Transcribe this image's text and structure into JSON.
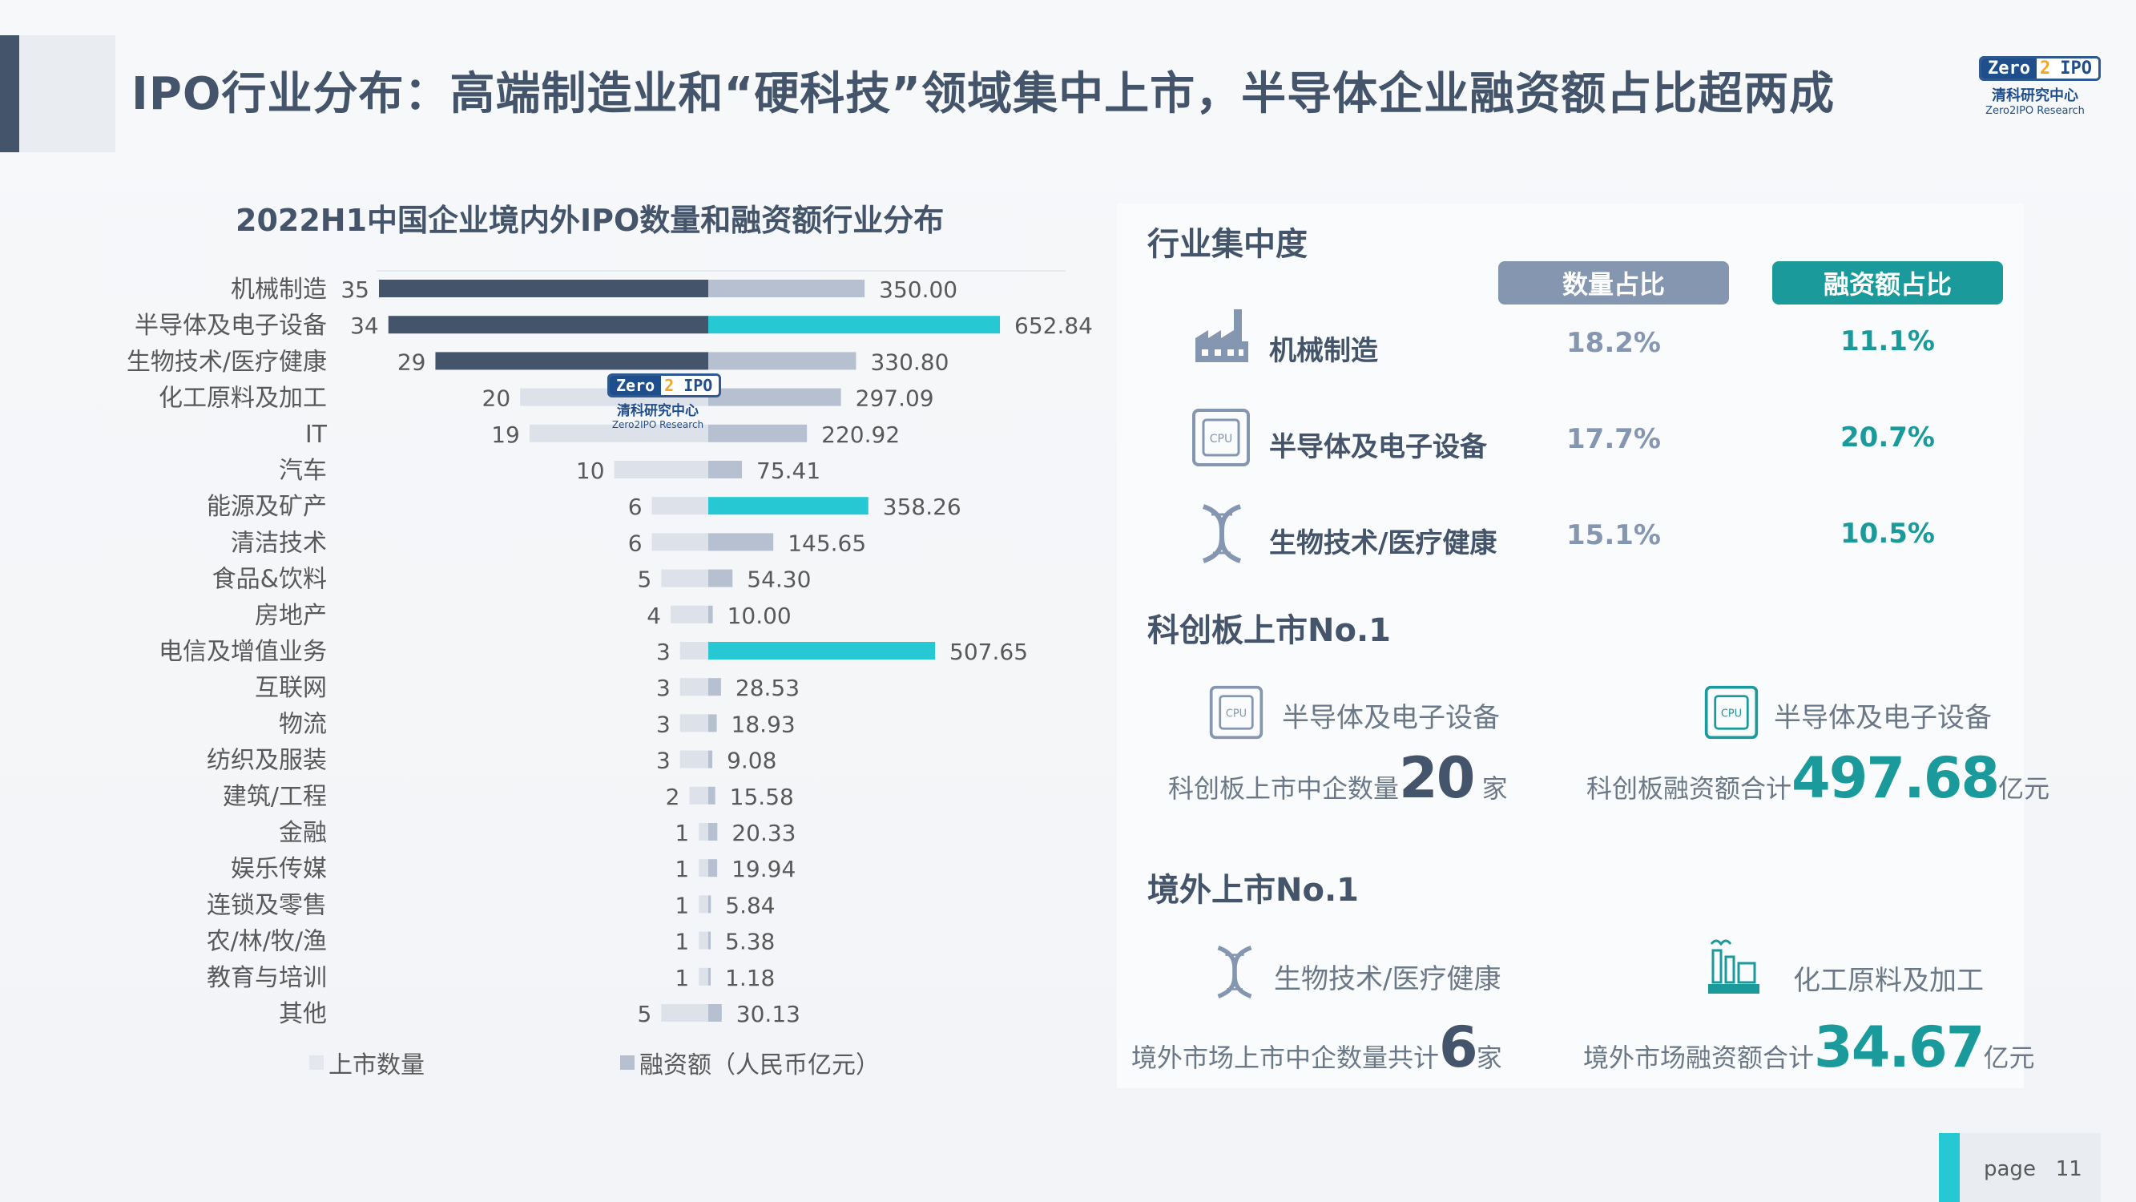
{
  "title": "IPO行业分布：高端制造业和“硬科技”领域集中上市，半导体企业融资额占比超两成",
  "logo": {
    "mark_left": "Zero",
    "mark_mid": "2",
    "mark_right": "IPO",
    "cn": "清科研究中心",
    "en": "Zero2IPO Research"
  },
  "chart_data": {
    "type": "bar",
    "title": "2022H1中国企业境内外IPO数量和融资额行业分布",
    "categories": [
      "机械制造",
      "半导体及电子设备",
      "生物技术/医疗健康",
      "化工原料及加工",
      "IT",
      "汽车",
      "能源及矿产",
      "清洁技术",
      "食品&饮料",
      "房地产",
      "电信及增值业务",
      "互联网",
      "物流",
      "纺织及服装",
      "建筑/工程",
      "金融",
      "娱乐传媒",
      "连锁及零售",
      "农/林/牧/渔",
      "教育与培训",
      "其他"
    ],
    "series": [
      {
        "name": "上市数量",
        "values": [
          35,
          34,
          29,
          20,
          19,
          10,
          6,
          6,
          5,
          4,
          3,
          3,
          3,
          3,
          2,
          1,
          1,
          1,
          1,
          1,
          5
        ]
      },
      {
        "name": "融资额（人民币亿元）",
        "values": [
          350.0,
          652.84,
          330.8,
          297.09,
          220.92,
          75.41,
          358.26,
          145.65,
          54.3,
          10.0,
          507.65,
          28.53,
          18.93,
          9.08,
          15.58,
          20.33,
          19.94,
          5.84,
          5.38,
          1.18,
          30.13
        ]
      }
    ],
    "value_labels_count": [
      "35",
      "34",
      "29",
      "20",
      "19",
      "10",
      "6",
      "6",
      "5",
      "4",
      "3",
      "3",
      "3",
      "3",
      "2",
      "1",
      "1",
      "1",
      "1",
      "1",
      "5"
    ],
    "value_labels_amount": [
      "350.00",
      "652.84",
      "330.80",
      "297.09",
      "220.92",
      "75.41",
      "358.26",
      "145.65",
      "54.30",
      "10.00",
      "507.65",
      "28.53",
      "18.93",
      "9.08",
      "15.58",
      "20.33",
      "19.94",
      "5.84",
      "5.38",
      "1.18",
      "30.13"
    ],
    "highlight_count": [
      0,
      1,
      2
    ],
    "highlight_amount": [
      1,
      6,
      10
    ],
    "legend_placement": "bottom",
    "colors": {
      "count_highlight": "#44546a",
      "count": "#dce1ea",
      "amount_highlight": "#25c8d3",
      "amount": "#b7c0d0"
    }
  },
  "panel": {
    "concentration": {
      "title": "行业集中度",
      "col_count": "数量占比",
      "col_amount": "融资额占比",
      "rows": [
        {
          "icon": "factory-icon",
          "label": "机械制造",
          "count_pct": "18.2%",
          "amount_pct": "11.1%"
        },
        {
          "icon": "cpu-icon",
          "label": "半导体及电子设备",
          "count_pct": "17.7%",
          "amount_pct": "20.7%"
        },
        {
          "icon": "dna-icon",
          "label": "生物技术/医疗健康",
          "count_pct": "15.1%",
          "amount_pct": "10.5%"
        }
      ]
    },
    "star": {
      "title": "科创板上市No.1",
      "left_label": "半导体及电子设备",
      "right_label": "半导体及电子设备",
      "left_prefix": "科创板上市中企数量",
      "left_value": "20",
      "left_suffix": "家",
      "right_prefix": "科创板融资额合计",
      "right_value": "497.68",
      "right_suffix": "亿元"
    },
    "overseas": {
      "title": "境外上市No.1",
      "left_label": "生物技术/医疗健康",
      "right_label": "化工原料及加工",
      "left_prefix": "境外市场上市中企数量共计",
      "left_value": "6",
      "left_suffix": "家",
      "right_prefix": "境外市场融资额合计",
      "right_value": "34.67",
      "right_suffix": "亿元"
    }
  },
  "footer": {
    "label": "page",
    "number": "11"
  }
}
